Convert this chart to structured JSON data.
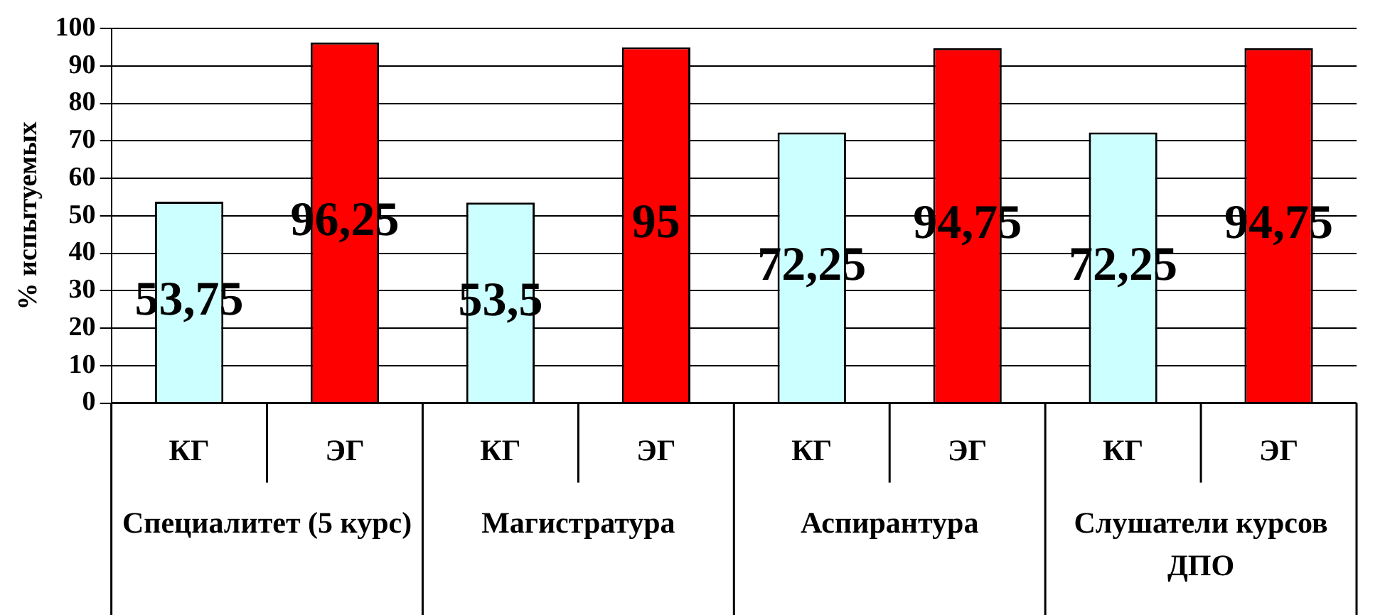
{
  "chart_data": {
    "type": "bar",
    "ylabel": "% испытуемых",
    "categories": [
      "КГ",
      "ЭГ",
      "КГ",
      "ЭГ",
      "КГ",
      "ЭГ",
      "КГ",
      "ЭГ"
    ],
    "values": [
      53.75,
      96.25,
      53.5,
      95,
      72.25,
      94.75,
      72.25,
      94.75
    ],
    "colors": [
      "#ccffff",
      "#ff0000",
      "#ccffff",
      "#ff0000",
      "#ccffff",
      "#ff0000",
      "#ccffff",
      "#ff0000"
    ],
    "value_labels": [
      "53,75",
      "96,25",
      "53,5",
      "95",
      "72,25",
      "94,75",
      "72,25",
      "94,75"
    ],
    "ylim": [
      0,
      100
    ],
    "yticks": [
      0,
      10,
      20,
      30,
      40,
      50,
      60,
      70,
      80,
      90,
      100
    ],
    "grid": "y",
    "legend": false,
    "annotations": [
      "Специалитет (5 курс)",
      "Магистратура",
      "Аспирантура",
      "Слушатели курсов ДПО"
    ]
  }
}
